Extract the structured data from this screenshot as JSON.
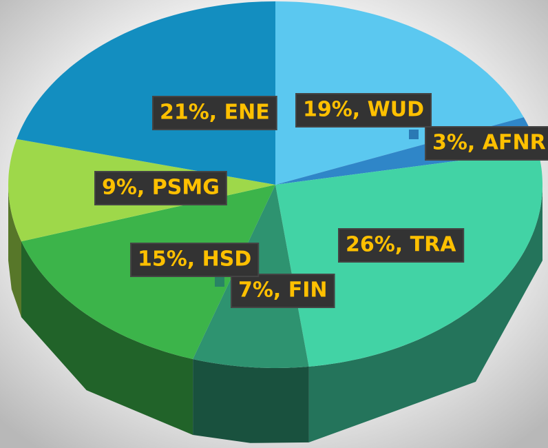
{
  "chart_data": {
    "type": "pie3d",
    "categories": [
      "WUD",
      "AFNR",
      "TRA",
      "FIN",
      "HSD",
      "PSMG",
      "ENE"
    ],
    "values": [
      19,
      3,
      26,
      7,
      15,
      9,
      21
    ],
    "value_labels": [
      "19%, WUD",
      "3%, AFNR",
      "26%, TRA",
      "7%, FIN",
      "15%, HSD",
      "9%, PSMG",
      "21%, ENE"
    ],
    "colors": [
      "#5bc8f0",
      "#2f86c8",
      "#42d3a5",
      "#2e9370",
      "#3cb44a",
      "#9ed84a",
      "#138ec0"
    ]
  }
}
